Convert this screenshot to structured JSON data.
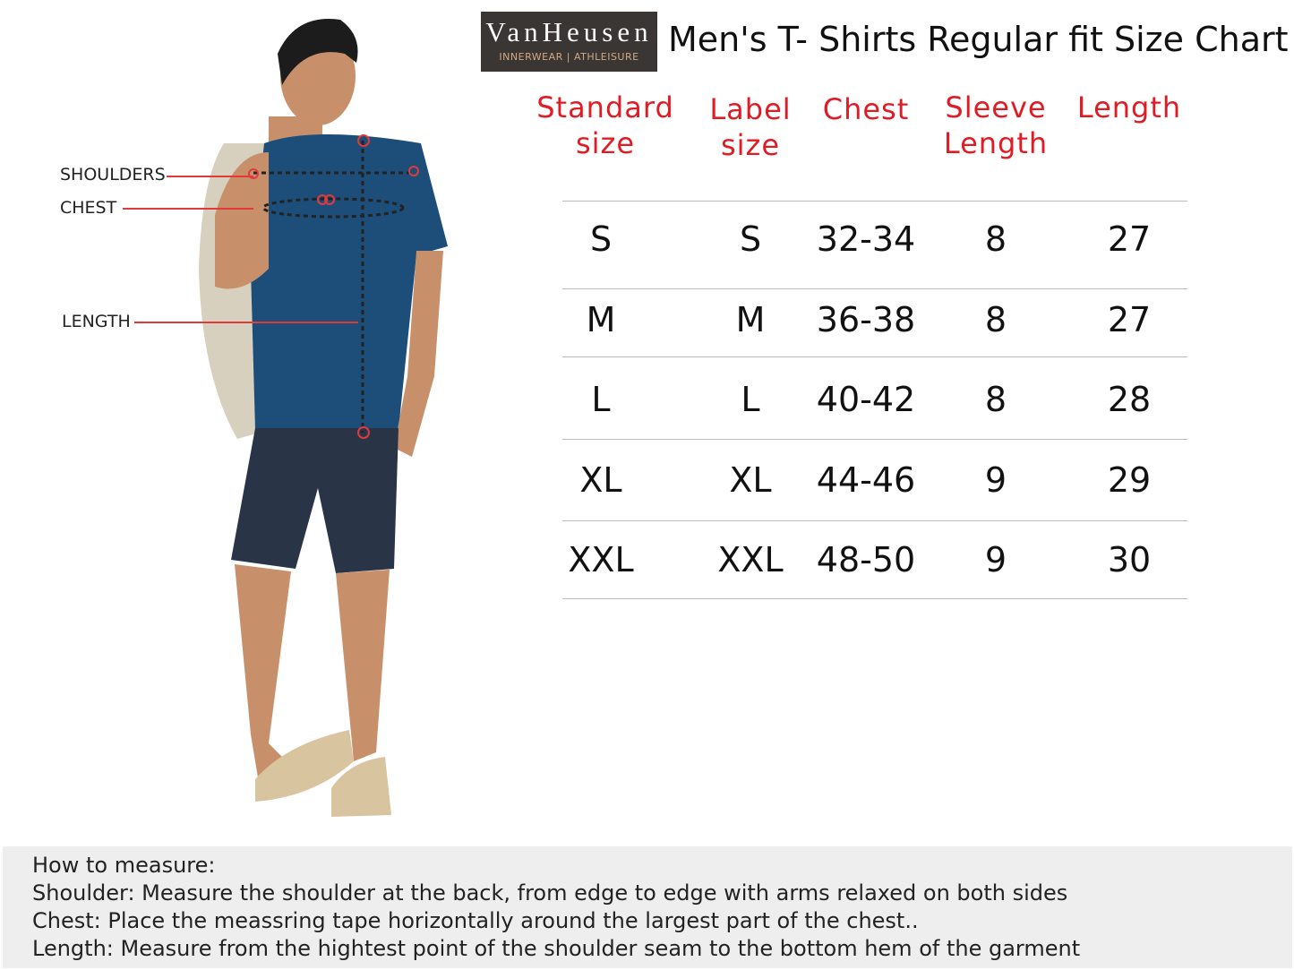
{
  "logo": {
    "brand": "VanHeusen",
    "tagline": "INNERWEAR | ATHLEISURE"
  },
  "title": "Men's T- Shirts Regular fit Size Chart",
  "table": {
    "headers": [
      [
        "Standard",
        "size"
      ],
      [
        "Label",
        "size"
      ],
      [
        "Chest",
        ""
      ],
      [
        "Sleeve",
        "Length"
      ],
      [
        "Length",
        ""
      ]
    ],
    "rows": [
      [
        "S",
        "S",
        "32-34",
        "8",
        "27"
      ],
      [
        "M",
        "M",
        "36-38",
        "8",
        "27"
      ],
      [
        "L",
        "L",
        "40-42",
        "8",
        "28"
      ],
      [
        "XL",
        "XL",
        "44-46",
        "9",
        "29"
      ],
      [
        "XXL",
        "XXL",
        "48-50",
        "9",
        "30"
      ]
    ]
  },
  "figure_labels": {
    "shoulders": "SHOULDERS",
    "chest": "CHEST",
    "length": "LENGTH"
  },
  "howto": {
    "heading": "How to measure:",
    "lines": [
      "Shoulder: Measure the shoulder at the back, from edge to edge with arms relaxed on both sides",
      "Chest: Place the meassring tape horizontally around the largest part of the chest..",
      "Length: Measure from the hightest point of the shoulder seam to the bottom hem of the garment"
    ]
  },
  "colors": {
    "header_red": "#e01b24",
    "tshirt": "#1d4e7a",
    "marker": "#e03a3a"
  }
}
